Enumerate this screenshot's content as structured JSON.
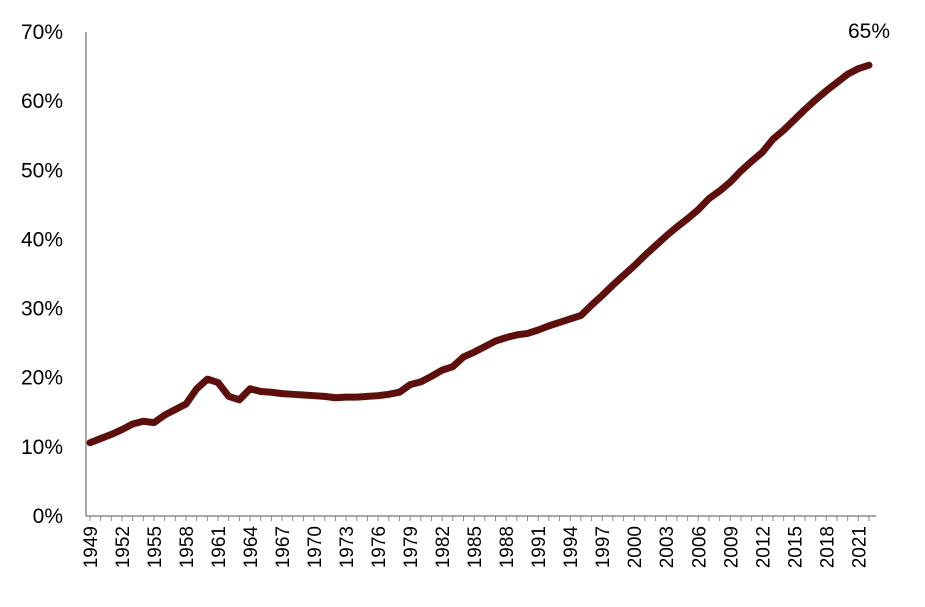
{
  "chart_data": {
    "type": "line",
    "title": "",
    "xlabel": "",
    "ylabel": "",
    "ylim": [
      0,
      70
    ],
    "yticks": [
      "0%",
      "10%",
      "20%",
      "30%",
      "40%",
      "50%",
      "60%",
      "70%"
    ],
    "xlim": [
      1949,
      2022
    ],
    "xticks": [
      "1949",
      "1952",
      "1955",
      "1958",
      "1961",
      "1964",
      "1967",
      "1970",
      "1973",
      "1976",
      "1979",
      "1982",
      "1985",
      "1988",
      "1991",
      "1994",
      "1997",
      "2000",
      "2003",
      "2006",
      "2009",
      "2012",
      "2015",
      "2018",
      "2021"
    ],
    "grid": false,
    "legend": "none",
    "series": [
      {
        "color": "#5c0f0c",
        "x": [
          1949,
          1950,
          1951,
          1952,
          1953,
          1954,
          1955,
          1956,
          1957,
          1958,
          1959,
          1960,
          1961,
          1962,
          1963,
          1964,
          1965,
          1966,
          1967,
          1968,
          1969,
          1970,
          1971,
          1972,
          1973,
          1974,
          1975,
          1976,
          1977,
          1978,
          1979,
          1980,
          1981,
          1982,
          1983,
          1984,
          1985,
          1986,
          1987,
          1988,
          1989,
          1990,
          1991,
          1992,
          1993,
          1994,
          1995,
          1996,
          1997,
          1998,
          1999,
          2000,
          2001,
          2002,
          2003,
          2004,
          2005,
          2006,
          2007,
          2008,
          2009,
          2010,
          2011,
          2012,
          2013,
          2014,
          2015,
          2016,
          2017,
          2018,
          2019,
          2020,
          2021,
          2022
        ],
        "values": [
          10.6,
          11.2,
          11.8,
          12.5,
          13.3,
          13.7,
          13.5,
          14.6,
          15.4,
          16.2,
          18.4,
          19.8,
          19.3,
          17.3,
          16.8,
          18.4,
          18.0,
          17.9,
          17.7,
          17.6,
          17.5,
          17.4,
          17.3,
          17.1,
          17.2,
          17.2,
          17.3,
          17.4,
          17.6,
          17.9,
          19.0,
          19.4,
          20.2,
          21.1,
          21.6,
          23.0,
          23.7,
          24.5,
          25.3,
          25.8,
          26.2,
          26.4,
          26.9,
          27.5,
          28.0,
          28.5,
          29.0,
          30.5,
          31.9,
          33.4,
          34.8,
          36.2,
          37.7,
          39.1,
          40.5,
          41.8,
          43.0,
          44.3,
          45.9,
          47.0,
          48.3,
          49.9,
          51.3,
          52.6,
          54.5,
          55.8,
          57.3,
          58.8,
          60.2,
          61.5,
          62.7,
          63.9,
          64.7,
          65.2
        ]
      }
    ],
    "annotations": [
      {
        "text": "65%",
        "x": 2022,
        "y": 65.2
      }
    ]
  }
}
